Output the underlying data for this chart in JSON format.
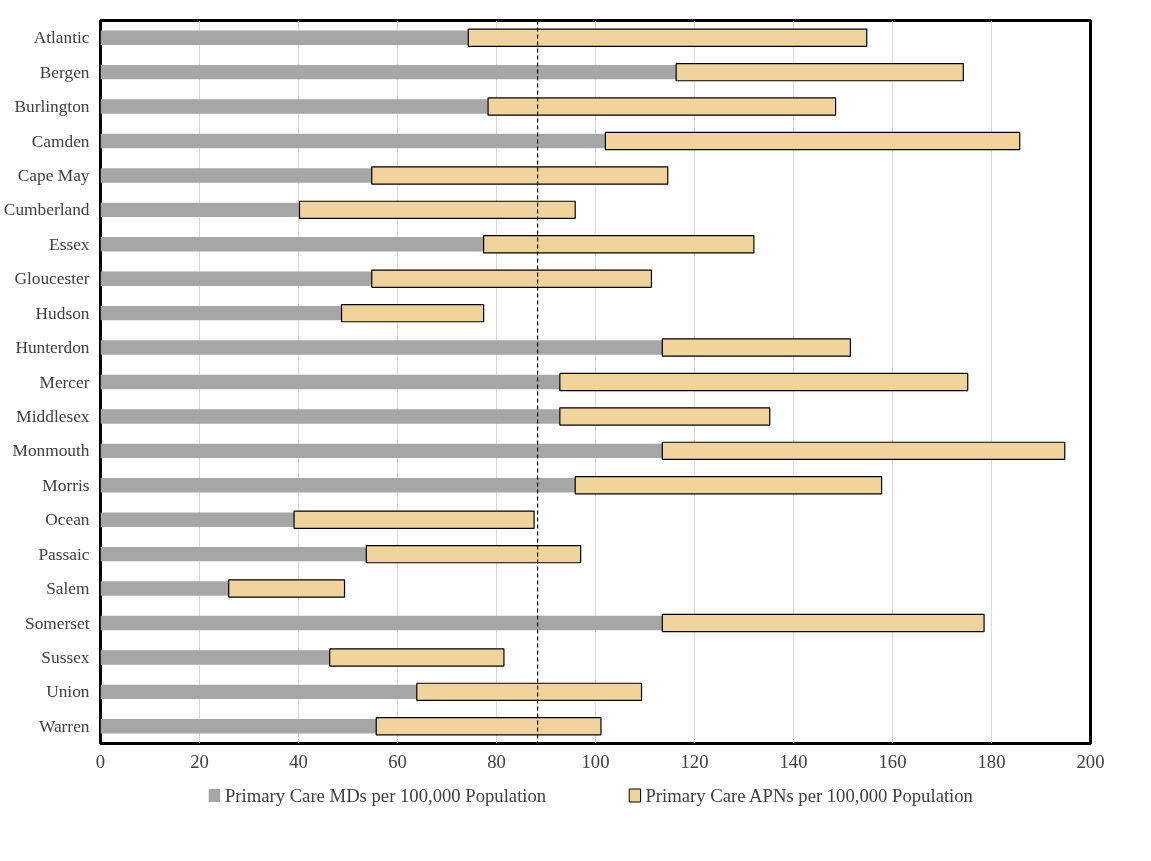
{
  "chart_data": {
    "type": "bar",
    "orientation": "horizontal",
    "stacked": true,
    "categories": [
      "Atlantic",
      "Bergen",
      "Burlington",
      "Camden",
      "Cape May",
      "Cumberland",
      "Essex",
      "Gloucester",
      "Hudson",
      "Hunterdon",
      "Mercer",
      "Middlesex",
      "Monmouth",
      "Morris",
      "Ocean",
      "Passaic",
      "Salem",
      "Somerset",
      "Sussex",
      "Union",
      "Warren"
    ],
    "series": [
      {
        "name": "Primary Care MDs per 100,000 Population",
        "color": "#a6a6a6",
        "values": [
          74.3,
          116.3,
          78.3,
          102,
          54.8,
          40.2,
          77.4,
          54.8,
          48.7,
          113.5,
          92.8,
          92.8,
          113.5,
          95.9,
          39.1,
          53.7,
          25.9,
          113.5,
          46.3,
          63.9,
          55.7
        ]
      },
      {
        "name": "Primary Care APNs per 100,000 Population",
        "color": "#f0d49c",
        "values": [
          80.5,
          58,
          70.2,
          83.7,
          59.8,
          55.7,
          54.6,
          56.5,
          28.7,
          38,
          82.4,
          42.4,
          81.3,
          61.9,
          48.5,
          43.3,
          23.4,
          65,
          35.2,
          45.4,
          45.4
        ]
      }
    ],
    "xlim": [
      0,
      200
    ],
    "xticks": [
      0,
      20,
      40,
      60,
      80,
      100,
      120,
      140,
      160,
      180,
      200
    ],
    "grid": "x",
    "legend": "bottom",
    "ref_lines": [
      {
        "axis": "x",
        "value": 88.3,
        "color": "#000000",
        "line_style": "dashed"
      }
    ]
  }
}
